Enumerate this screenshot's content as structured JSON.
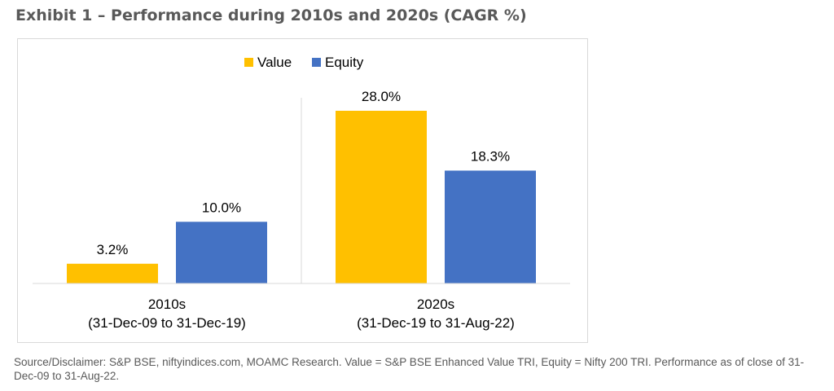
{
  "title": "Exhibit 1 – Performance during 2010s and 2020s (CAGR %)",
  "source_note": "Source/Disclaimer: S&P BSE, niftyindices.com, MOAMC Research. Value = S&P BSE Enhanced Value TRI, Equity = Nifty 200 TRI. Performance as of close of 31-Dec-09 to 31-Aug-22.",
  "chart_data": {
    "type": "bar",
    "title": "",
    "xlabel": "",
    "ylabel": "",
    "ylim": [
      0,
      30
    ],
    "grid": false,
    "legend": "top-center",
    "categories": [
      [
        "2010s",
        "(31-Dec-09 to 31-Dec-19)"
      ],
      [
        "2020s",
        "(31-Dec-19 to 31-Aug-22)"
      ]
    ],
    "series": [
      {
        "name": "Value",
        "color": "#FFC000",
        "values": [
          3.2,
          28.0
        ],
        "labels": [
          "3.2%",
          "28.0%"
        ]
      },
      {
        "name": "Equity",
        "color": "#4472C4",
        "values": [
          10.0,
          18.3
        ],
        "labels": [
          "10.0%",
          "18.3%"
        ]
      }
    ]
  }
}
